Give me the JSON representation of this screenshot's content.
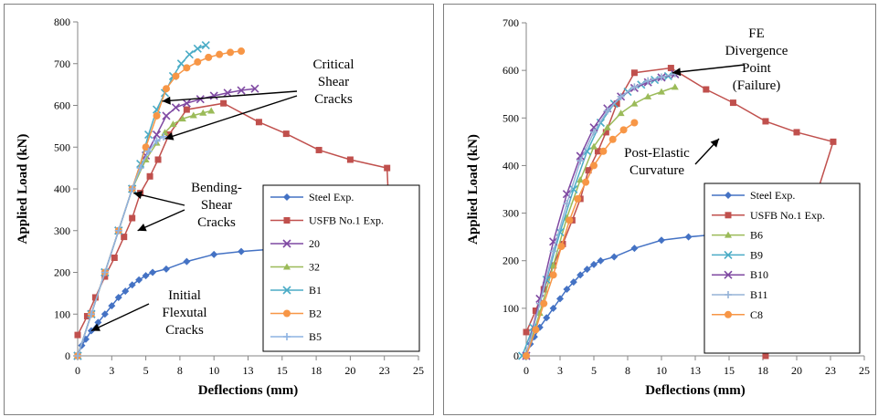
{
  "chart_data": [
    {
      "type": "line",
      "xlabel": "Deflections (mm)",
      "ylabel": "Applied Load (kN)",
      "xlim": [
        0,
        25
      ],
      "ylim": [
        0,
        800
      ],
      "x_ticks": [
        "0",
        "3",
        "5",
        "8",
        "10",
        "13",
        "15",
        "18",
        "20",
        "23",
        "25"
      ],
      "y_ticks": [
        "0",
        "100",
        "200",
        "300",
        "400",
        "500",
        "600",
        "700",
        "800"
      ],
      "grid": false,
      "legend_position": "bottom-right",
      "annotations": [
        {
          "text": "Critical Shear Cracks",
          "lines": [
            "Critical",
            "Shear",
            "Cracks"
          ]
        },
        {
          "text": "Bending-Shear Cracks",
          "lines": [
            "Bending-",
            "Shear",
            "Cracks"
          ]
        },
        {
          "text": "Initial Flexutal Cracks",
          "lines": [
            "Initial",
            "Flexutal",
            "Cracks"
          ]
        }
      ],
      "series": [
        {
          "name": "Steel Exp.",
          "color": "#4472c4",
          "marker": "diamond",
          "x": [
            0,
            0.3,
            0.6,
            1.0,
            1.5,
            2.0,
            2.5,
            3.0,
            3.5,
            4.0,
            4.5,
            5.0,
            5.5,
            6.5,
            8.0,
            10.0,
            12.0,
            14.0
          ],
          "y": [
            0,
            25,
            40,
            60,
            80,
            100,
            120,
            140,
            155,
            170,
            182,
            192,
            200,
            208,
            226,
            243,
            250,
            255
          ]
        },
        {
          "name": "USFB No.1 Exp.",
          "color": "#c0504d",
          "marker": "square",
          "x": [
            0,
            0.7,
            1.3,
            2.0,
            2.7,
            3.4,
            4.0,
            4.6,
            5.3,
            5.9,
            6.7,
            8.0,
            10.7,
            13.3,
            15.3,
            17.7,
            20.0,
            22.7,
            22.9
          ],
          "y": [
            50,
            95,
            140,
            190,
            235,
            285,
            330,
            390,
            430,
            470,
            530,
            590,
            605,
            560,
            532,
            493,
            470,
            450,
            300
          ]
        },
        {
          "name": "20",
          "color": "#7f49a2",
          "marker": "x",
          "x": [
            0,
            1.0,
            2.0,
            3.0,
            4.0,
            5.0,
            5.8,
            6.5,
            7.2,
            8.0,
            9.0,
            10.0,
            11.0,
            12.0,
            13.0
          ],
          "y": [
            0,
            100,
            200,
            300,
            400,
            480,
            530,
            575,
            595,
            605,
            615,
            623,
            630,
            636,
            640
          ]
        },
        {
          "name": "32",
          "color": "#9bbb59",
          "marker": "triangle",
          "x": [
            0,
            1.0,
            2.0,
            3.0,
            4.0,
            5.0,
            5.8,
            6.4,
            7.0,
            7.7,
            8.5,
            9.2,
            9.8
          ],
          "y": [
            0,
            100,
            200,
            300,
            400,
            470,
            510,
            535,
            555,
            568,
            576,
            582,
            587
          ]
        },
        {
          "name": "B1",
          "color": "#4bacc6",
          "marker": "x",
          "x": [
            0,
            1.0,
            2.0,
            3.0,
            4.0,
            4.6,
            5.2,
            5.8,
            6.4,
            7.0,
            7.6,
            8.2,
            8.8,
            9.4
          ],
          "y": [
            0,
            100,
            200,
            300,
            400,
            460,
            530,
            590,
            630,
            670,
            700,
            722,
            736,
            744
          ]
        },
        {
          "name": "B2",
          "color": "#f79646",
          "marker": "circle",
          "x": [
            0,
            1.0,
            2.0,
            3.0,
            4.0,
            5.0,
            5.8,
            6.5,
            7.2,
            8.0,
            8.8,
            9.6,
            10.4,
            11.2,
            12.0
          ],
          "y": [
            0,
            100,
            200,
            300,
            400,
            500,
            575,
            640,
            670,
            690,
            704,
            715,
            722,
            727,
            730
          ]
        },
        {
          "name": "B5",
          "color": "#8db3e2",
          "marker": "plus",
          "x": [
            0,
            1.0,
            2.0,
            3.0,
            4.0,
            4.6,
            5.2,
            5.8,
            6.3
          ],
          "y": [
            0,
            100,
            200,
            300,
            400,
            450,
            490,
            515,
            525
          ]
        }
      ]
    },
    {
      "type": "line",
      "xlabel": "Deflections (mm)",
      "ylabel": "Applied Load (kN)",
      "xlim": [
        0,
        25
      ],
      "ylim": [
        0,
        700
      ],
      "x_ticks": [
        "0",
        "3",
        "5",
        "8",
        "10",
        "13",
        "15",
        "18",
        "20",
        "23",
        "25"
      ],
      "y_ticks": [
        "0",
        "100",
        "200",
        "300",
        "400",
        "500",
        "600",
        "700"
      ],
      "grid": false,
      "legend_position": "bottom-right",
      "annotations": [
        {
          "text": "FE Divergence Point (Failure)",
          "lines": [
            "FE",
            "Divergence",
            "Point",
            "(Failure)"
          ]
        },
        {
          "text": "Post-Elastic Curvature",
          "lines": [
            "Post-Elastic",
            "Curvature"
          ]
        }
      ],
      "series": [
        {
          "name": "Steel Exp.",
          "color": "#4472c4",
          "marker": "diamond",
          "x": [
            0,
            0.3,
            0.6,
            1.0,
            1.5,
            2.0,
            2.5,
            3.0,
            3.5,
            4.0,
            4.5,
            5.0,
            5.5,
            6.5,
            8.0,
            10.0,
            12.0,
            14.0
          ],
          "y": [
            0,
            25,
            40,
            60,
            80,
            100,
            120,
            140,
            155,
            170,
            182,
            192,
            200,
            208,
            226,
            243,
            250,
            255
          ]
        },
        {
          "name": "USFB No.1 Exp.",
          "color": "#c0504d",
          "marker": "square",
          "x": [
            0,
            0.7,
            1.3,
            2.0,
            2.7,
            3.4,
            4.0,
            4.6,
            5.3,
            5.9,
            6.7,
            8.0,
            10.7,
            13.3,
            15.3,
            17.7,
            20.0,
            22.7,
            17.7
          ],
          "y": [
            50,
            95,
            140,
            190,
            235,
            285,
            330,
            390,
            430,
            470,
            530,
            595,
            605,
            560,
            532,
            493,
            470,
            450,
            0
          ]
        },
        {
          "name": "B6",
          "color": "#9bbb59",
          "marker": "triangle",
          "x": [
            0,
            1.0,
            2.0,
            3.0,
            4.0,
            5.0,
            6.0,
            7.0,
            8.0,
            9.0,
            10.0,
            11.0
          ],
          "y": [
            0,
            90,
            190,
            290,
            370,
            440,
            480,
            510,
            530,
            545,
            555,
            565
          ]
        },
        {
          "name": "B9",
          "color": "#4bacc6",
          "marker": "x",
          "x": [
            -0.3,
            0.5,
            1.5,
            2.5,
            3.5,
            4.5,
            5.5,
            6.5,
            7.5,
            8.5,
            9.5,
            10.5,
            11.0
          ],
          "y": [
            0,
            60,
            160,
            260,
            350,
            430,
            490,
            530,
            555,
            570,
            580,
            588,
            592
          ]
        },
        {
          "name": "B10",
          "color": "#7f49a2",
          "marker": "x",
          "x": [
            0,
            1.0,
            2.0,
            3.0,
            4.0,
            5.0,
            6.0,
            7.0,
            8.0,
            9.0,
            10.0,
            11.0
          ],
          "y": [
            0,
            120,
            240,
            340,
            420,
            480,
            520,
            545,
            563,
            575,
            585,
            592
          ]
        },
        {
          "name": "B11",
          "color": "#95b3d7",
          "marker": "plus",
          "x": [
            0,
            1.0,
            2.0,
            3.0,
            4.0,
            5.0,
            6.0,
            7.0,
            8.0,
            9.0,
            10.0,
            11.0
          ],
          "y": [
            0,
            110,
            220,
            320,
            410,
            470,
            515,
            545,
            565,
            578,
            586,
            593
          ]
        },
        {
          "name": "C8",
          "color": "#f79646",
          "marker": "circle",
          "x": [
            0,
            0.7,
            1.3,
            2.0,
            2.6,
            3.2,
            3.8,
            4.4,
            5.0,
            5.7,
            6.4,
            7.2,
            8.0
          ],
          "y": [
            0,
            55,
            110,
            170,
            230,
            285,
            330,
            365,
            400,
            430,
            455,
            475,
            490
          ]
        }
      ]
    }
  ]
}
